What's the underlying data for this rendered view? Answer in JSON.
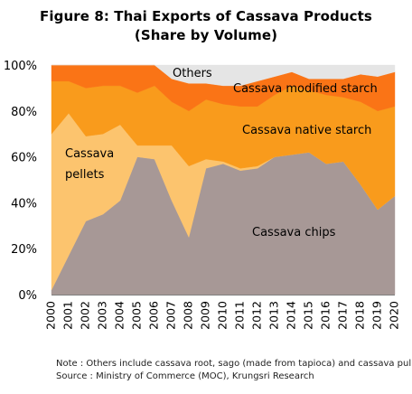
{
  "chart_data": {
    "type": "area",
    "stacked": true,
    "title": "Figure 8: Thai Exports of Cassava Products",
    "subtitle": "(Share by Volume)",
    "categories": [
      "2000",
      "2001",
      "2002",
      "2003",
      "2004",
      "2005",
      "2006",
      "2007",
      "2008",
      "2009",
      "2010",
      "2011",
      "2012",
      "2013",
      "2014",
      "2015",
      "2016",
      "2017",
      "2018",
      "2019",
      "2020"
    ],
    "ylim": [
      0,
      100
    ],
    "yticks": [
      "0%",
      "20%",
      "40%",
      "60%",
      "80%",
      "100%"
    ],
    "xlabel": "",
    "ylabel": "",
    "grid": false,
    "legend": "none",
    "series": [
      {
        "name": "Cassava  chips",
        "color": "#a79896",
        "values": [
          2,
          17,
          32,
          35,
          41,
          60,
          59,
          41,
          25,
          55,
          57,
          54,
          55,
          60,
          61,
          62,
          57,
          58,
          48,
          37,
          43
        ]
      },
      {
        "name": "Cassava pellets",
        "color": "#fcc46e",
        "values": [
          68,
          62,
          37,
          35,
          33,
          5,
          6,
          24,
          31,
          4,
          1,
          1,
          1,
          0,
          0,
          0,
          0,
          0,
          0,
          0,
          0
        ]
      },
      {
        "name": "Cassava native starch",
        "color": "#f99b1c",
        "values": [
          23,
          14,
          21,
          21,
          17,
          23,
          26,
          19,
          24,
          26,
          25,
          27,
          26,
          27,
          30,
          27,
          30,
          28,
          36,
          43,
          39
        ]
      },
      {
        "name": "Cassava modified starch",
        "color": "#fa7416",
        "values": [
          7,
          7,
          10,
          9,
          9,
          12,
          9,
          10,
          12,
          7,
          8,
          9,
          11,
          8,
          6,
          5,
          7,
          8,
          12,
          15,
          15
        ]
      },
      {
        "name": "Others",
        "color": "#e5e5e5",
        "values": [
          0,
          0,
          0,
          0,
          0,
          0,
          0,
          6,
          8,
          8,
          9,
          9,
          7,
          5,
          3,
          6,
          6,
          6,
          4,
          5,
          3
        ]
      }
    ]
  },
  "note": {
    "line1": "Note : Others include cassava root, sago (made from tapioca) and cassava pulp",
    "line2": "Source : Ministry of Commerce (MOC), Krungsri Research"
  }
}
